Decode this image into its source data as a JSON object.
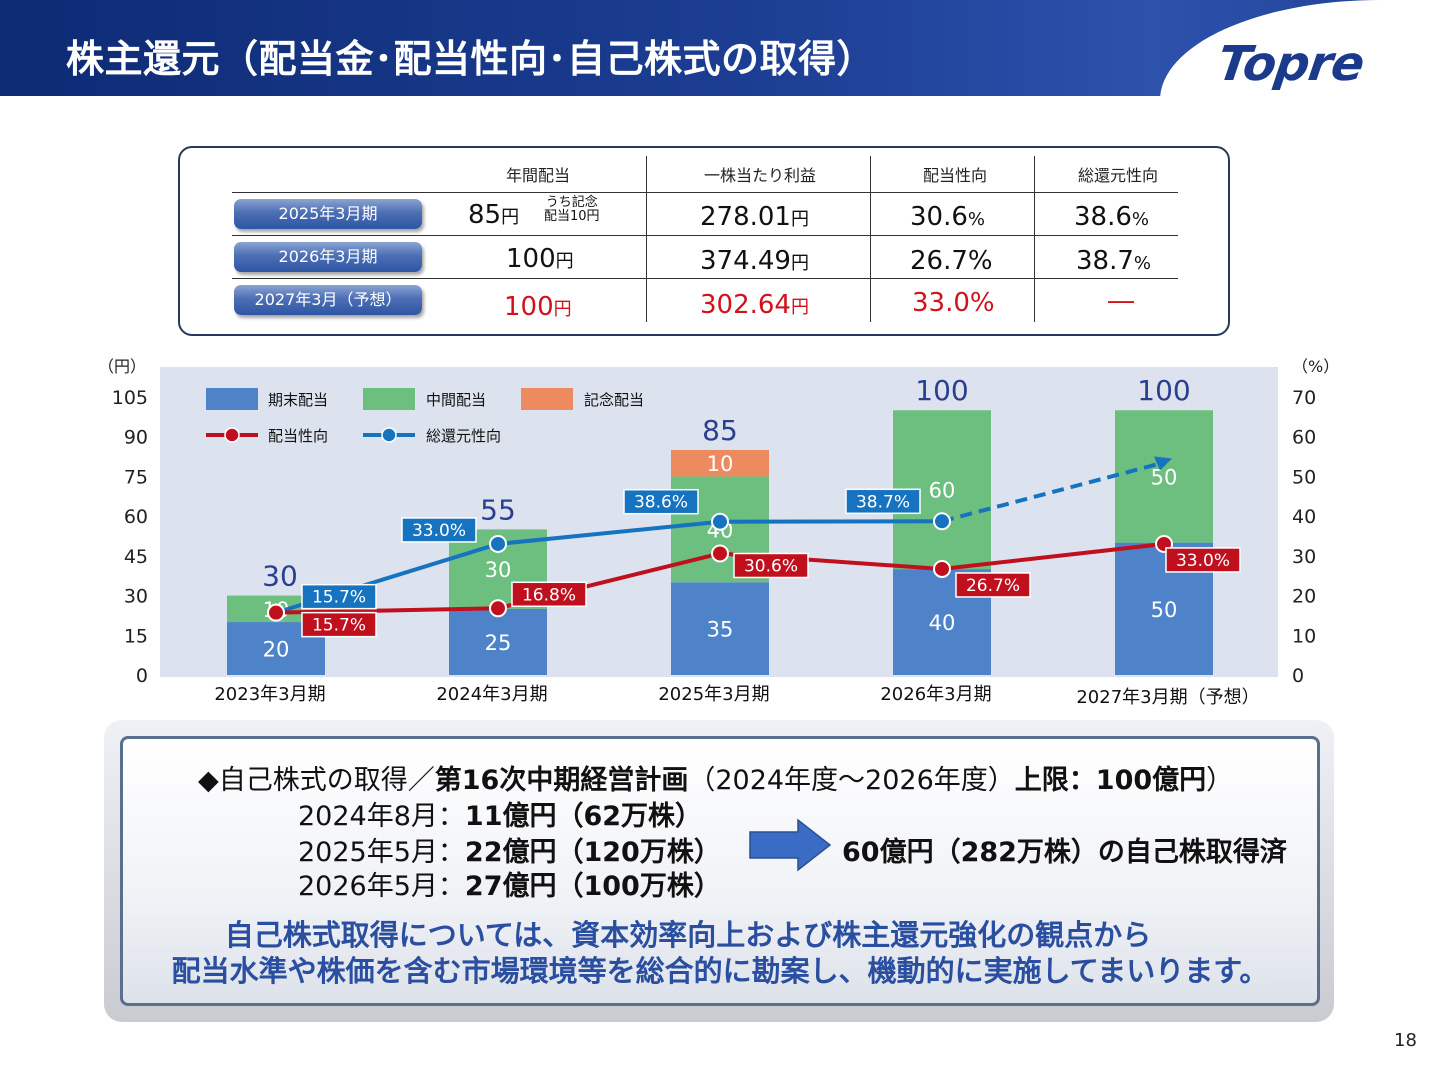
{
  "header": {
    "title": "株主還元（配当金･配当性向･自己株式の取得）",
    "logo": "Topre"
  },
  "page_number": "18",
  "summary_table": {
    "columns": [
      "年間配当",
      "一株当たり利益",
      "配当性向",
      "総還元性向"
    ],
    "rows": [
      {
        "period": "2025年3月期",
        "dividend": "85",
        "dividend_unit": "円",
        "dividend_note_1": "うち記念",
        "dividend_note_2": "配当10円",
        "eps": "278.01",
        "eps_unit": "円",
        "payout": "30.6",
        "payout_unit": "%",
        "total_return": "38.6",
        "total_return_unit": "%"
      },
      {
        "period": "2026年3月期",
        "dividend": "100",
        "dividend_unit": "円",
        "eps": "374.49",
        "eps_unit": "円",
        "payout": "26.7%",
        "total_return": "38.7",
        "total_return_unit": "%"
      },
      {
        "period": "2027年3月（予想）",
        "dividend": "100",
        "dividend_unit": "円",
        "eps": "302.64",
        "eps_unit": "円",
        "payout": "33.0%",
        "total_return": "―"
      }
    ],
    "forecast_color": "#d0121b"
  },
  "chart_data": {
    "type": "bar",
    "stacked": true,
    "categories": [
      "2023年3月期",
      "2024年3月期",
      "2025年3月期",
      "2026年3月期",
      "2027年3月期（予想）"
    ],
    "left_axis_unit": "（円）",
    "right_axis_unit": "（%）",
    "ylim": [
      0,
      105
    ],
    "y_ticks": [
      0,
      15,
      30,
      45,
      60,
      75,
      90,
      105
    ],
    "y2lim": [
      0,
      70
    ],
    "y2_ticks": [
      0,
      10,
      20,
      30,
      40,
      50,
      60,
      70
    ],
    "grid": false,
    "legend_position": "top-left",
    "series": [
      {
        "name": "期末配当",
        "kind": "bar",
        "color": "#4f83c9",
        "values": [
          20,
          25,
          35,
          40,
          50
        ]
      },
      {
        "name": "中間配当",
        "kind": "bar",
        "color": "#6cbf7e",
        "values": [
          10,
          30,
          40,
          60,
          50
        ]
      },
      {
        "name": "記念配当",
        "kind": "bar",
        "color": "#ee8a5f",
        "values": [
          0,
          0,
          10,
          0,
          0
        ]
      },
      {
        "name": "配当性向",
        "kind": "line",
        "axis": "right",
        "color": "#c0101e",
        "values": [
          15.7,
          16.8,
          30.6,
          26.7,
          33.0
        ],
        "labels": [
          "15.7%",
          "16.8%",
          "30.6%",
          "26.7%",
          "33.0%"
        ]
      },
      {
        "name": "総還元性向",
        "kind": "line",
        "axis": "right",
        "color": "#1673c0",
        "values": [
          15.7,
          33.0,
          38.6,
          38.7,
          null
        ],
        "labels": [
          "15.7%",
          "33.0%",
          "38.6%",
          "38.7%",
          ""
        ],
        "forecast_arrow_end": 54.5
      }
    ],
    "totals": [
      "30",
      "55",
      "85",
      "100",
      "100"
    ]
  },
  "buyback": {
    "title_prefix": "◆自己株式の取得／",
    "title_bold": "第16次中期経営計画",
    "title_mid": "（2024年度～2026年度）",
    "title_limit": "上限：100億円",
    "title_suffix": "）",
    "items": [
      {
        "date": "2024年8月：",
        "amount": "11億円",
        "shares": "（62万株）"
      },
      {
        "date": "2025年5月：",
        "amount": "22億円",
        "shares": "（120万株）"
      },
      {
        "date": "2026年5月：",
        "amount": "27億円",
        "shares": "（100万株）"
      }
    ],
    "result": "60億円（282万株）の自己株取得済",
    "policy_line1": "自己株式取得については、資本効率向上および株主還元強化の観点から",
    "policy_line2": "配当水準や株価を含む市場環境等を総合的に勘案し、機動的に実施してまいります。"
  }
}
